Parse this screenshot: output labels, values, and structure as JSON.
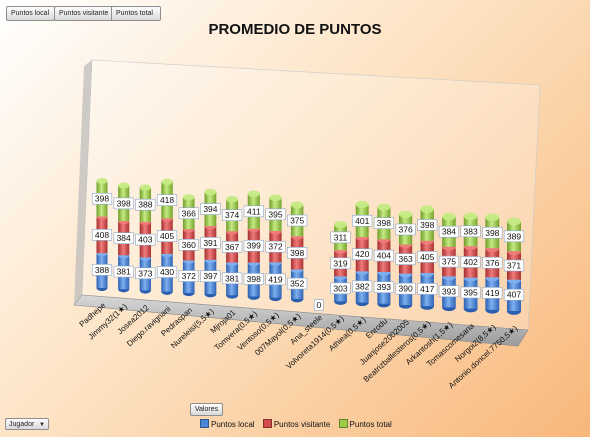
{
  "field_buttons": {
    "local": "Puntos local",
    "visitante": "Puntos visitante",
    "total": "Puntos total"
  },
  "axis_field_button": {
    "label": "Jugador",
    "icon": "dropdown-arrow-icon"
  },
  "values_field_button": {
    "label": "Valores"
  },
  "chart_data": {
    "type": "bar",
    "subtype": "3d-stacked-column",
    "title": "PROMEDIO DE PUNTOS",
    "xlabel": "",
    "ylabel": "",
    "legend_position": "bottom",
    "grid": false,
    "colors": [
      "#4a86d8",
      "#d24b4b",
      "#9ccc47"
    ],
    "categories": [
      "Padhepe",
      "Jimmy32(1★)",
      "Josea2012",
      "Diego.ravignani",
      "Pedraspan",
      "Nureleisi(5,5★)",
      "Mjroja01",
      "Tomvera(0,5★)",
      "Ventoso(0,5★)",
      "007Mayol(0,5★)",
      "Ana_steele",
      "Volvoreta1914(0,5★)",
      "Athiea(0,5★)",
      "Enrodu",
      "Juanjose2002005",
      "Beatrizballesteros(0,5★)",
      "Arkantosh(1,5★)",
      "Tomascomesana",
      "Norgoi2(8,5★)",
      "Antonio.doncel.7750,5★)"
    ],
    "series": [
      {
        "name": "Puntos local",
        "values": [
          388,
          381,
          373,
          430,
          372,
          397,
          381,
          398,
          419,
          352,
          0,
          303,
          382,
          393,
          390,
          417,
          393,
          395,
          419,
          407
        ]
      },
      {
        "name": "Puntos visitante",
        "values": [
          408,
          384,
          403,
          405,
          360,
          391,
          367,
          399,
          372,
          398,
          null,
          319,
          420,
          404,
          363,
          405,
          375,
          402,
          376,
          371
        ]
      },
      {
        "name": "Puntos total",
        "values": [
          398,
          398,
          388,
          418,
          366,
          394,
          374,
          411,
          395,
          375,
          null,
          311,
          401,
          398,
          376,
          398,
          384,
          383,
          398,
          389
        ]
      }
    ]
  }
}
